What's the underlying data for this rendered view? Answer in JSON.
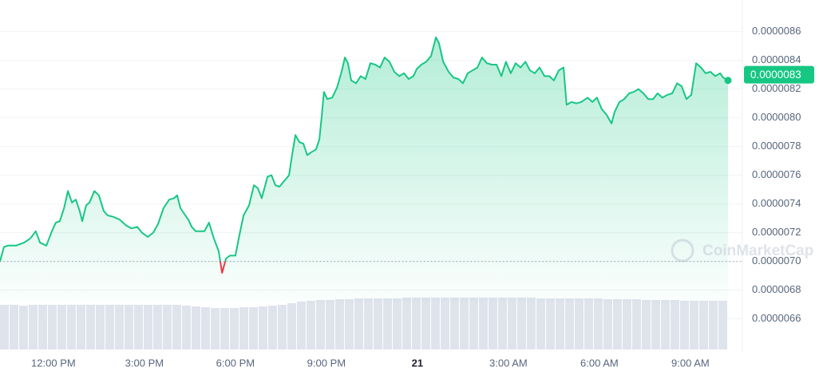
{
  "chart_data": {
    "type": "line",
    "color": "#16c784",
    "down_color": "#ea3943",
    "baseline": 7e-06,
    "watermark": "CoinMarketCap",
    "price_tag": {
      "value": 8.3e-06,
      "label": "0.0000083"
    },
    "xlim": [
      10.24,
      34.24
    ],
    "xticks": [
      {
        "value": 12,
        "label": "12:00 PM"
      },
      {
        "value": 15,
        "label": "3:00 PM"
      },
      {
        "value": 18,
        "label": "6:00 PM"
      },
      {
        "value": 21,
        "label": "9:00 PM"
      },
      {
        "value": 24,
        "label": "21"
      },
      {
        "value": 27,
        "label": "3:00 AM"
      },
      {
        "value": 30,
        "label": "6:00 AM"
      },
      {
        "value": 33,
        "label": "9:00 AM"
      }
    ],
    "ylim": [
      6.36e-06,
      8.82e-06
    ],
    "yticks": [
      {
        "value": 6.6e-06,
        "label": "0.0000066"
      },
      {
        "value": 6.8e-06,
        "label": "0.0000068"
      },
      {
        "value": 7e-06,
        "label": "0.0000070"
      },
      {
        "value": 7.2e-06,
        "label": "0.0000072"
      },
      {
        "value": 7.4e-06,
        "label": "0.0000074"
      },
      {
        "value": 7.6e-06,
        "label": "0.0000076"
      },
      {
        "value": 7.8e-06,
        "label": "0.0000078"
      },
      {
        "value": 8e-06,
        "label": "0.0000080"
      },
      {
        "value": 8.2e-06,
        "label": "0.0000082"
      },
      {
        "value": 8.4e-06,
        "label": "0.0000084"
      },
      {
        "value": 8.6e-06,
        "label": "0.0000086"
      }
    ],
    "grid": true,
    "x": [
      10.24,
      10.37,
      10.5,
      10.77,
      11.03,
      11.24,
      11.42,
      11.56,
      11.77,
      11.95,
      12.08,
      12.21,
      12.35,
      12.48,
      12.61,
      12.74,
      12.87,
      12.95,
      13.08,
      13.19,
      13.35,
      13.5,
      13.66,
      13.79,
      13.98,
      14.19,
      14.4,
      14.58,
      14.77,
      14.92,
      15.11,
      15.29,
      15.45,
      15.63,
      15.82,
      15.98,
      16.08,
      16.19,
      16.35,
      16.45,
      16.56,
      16.69,
      16.82,
      16.98,
      17.13,
      17.29,
      17.45,
      17.56,
      17.69,
      17.82,
      18.0,
      18.13,
      18.27,
      18.45,
      18.61,
      18.74,
      18.87,
      19.06,
      19.19,
      19.32,
      19.45,
      19.61,
      19.77,
      19.87,
      19.98,
      20.11,
      20.24,
      20.37,
      20.5,
      20.66,
      20.77,
      20.85,
      20.92,
      21.03,
      21.19,
      21.35,
      21.5,
      21.61,
      21.71,
      21.82,
      21.98,
      22.13,
      22.29,
      22.45,
      22.61,
      22.77,
      22.92,
      23.08,
      23.24,
      23.4,
      23.56,
      23.71,
      23.87,
      23.98,
      24.13,
      24.29,
      24.45,
      24.61,
      24.71,
      24.85,
      25.03,
      25.19,
      25.35,
      25.5,
      25.66,
      25.82,
      25.98,
      26.13,
      26.29,
      26.45,
      26.61,
      26.77,
      26.92,
      27.08,
      27.24,
      27.4,
      27.56,
      27.71,
      27.87,
      28.03,
      28.19,
      28.35,
      28.5,
      28.66,
      28.82,
      28.92,
      29.08,
      29.24,
      29.4,
      29.61,
      29.77,
      29.92,
      30.08,
      30.24,
      30.4,
      30.5,
      30.66,
      30.82,
      30.98,
      31.13,
      31.29,
      31.45,
      31.61,
      31.77,
      31.92,
      32.08,
      32.24,
      32.4,
      32.56,
      32.71,
      32.87,
      33.03,
      33.19,
      33.35,
      33.5,
      33.66,
      33.82,
      33.98,
      34.08,
      34.24
    ],
    "values": [
      7e-06,
      7.1e-06,
      7.11e-06,
      7.11e-06,
      7.13e-06,
      7.16e-06,
      7.21e-06,
      7.13e-06,
      7.11e-06,
      7.21e-06,
      7.27e-06,
      7.28e-06,
      7.37e-06,
      7.49e-06,
      7.41e-06,
      7.43e-06,
      7.35e-06,
      7.28e-06,
      7.39e-06,
      7.41e-06,
      7.49e-06,
      7.46e-06,
      7.35e-06,
      7.32e-06,
      7.31e-06,
      7.29e-06,
      7.25e-06,
      7.23e-06,
      7.24e-06,
      7.2e-06,
      7.17e-06,
      7.2e-06,
      7.26e-06,
      7.37e-06,
      7.43e-06,
      7.44e-06,
      7.46e-06,
      7.37e-06,
      7.32e-06,
      7.29e-06,
      7.24e-06,
      7.21e-06,
      7.21e-06,
      7.21e-06,
      7.27e-06,
      7.16e-06,
      7.07e-06,
      6.92e-06,
      7.02e-06,
      7.04e-06,
      7.04e-06,
      7.18e-06,
      7.32e-06,
      7.39e-06,
      7.53e-06,
      7.51e-06,
      7.44e-06,
      7.59e-06,
      7.6e-06,
      7.53e-06,
      7.52e-06,
      7.56e-06,
      7.6e-06,
      7.74e-06,
      7.88e-06,
      7.83e-06,
      7.82e-06,
      7.74e-06,
      7.76e-06,
      7.78e-06,
      7.85e-06,
      8.02e-06,
      8.18e-06,
      8.13e-06,
      8.14e-06,
      8.21e-06,
      8.32e-06,
      8.42e-06,
      8.38e-06,
      8.26e-06,
      8.24e-06,
      8.29e-06,
      8.27e-06,
      8.38e-06,
      8.37e-06,
      8.35e-06,
      8.42e-06,
      8.39e-06,
      8.32e-06,
      8.29e-06,
      8.31e-06,
      8.27e-06,
      8.29e-06,
      8.34e-06,
      8.37e-06,
      8.39e-06,
      8.43e-06,
      8.56e-06,
      8.52e-06,
      8.39e-06,
      8.32e-06,
      8.28e-06,
      8.27e-06,
      8.24e-06,
      8.31e-06,
      8.33e-06,
      8.35e-06,
      8.42e-06,
      8.38e-06,
      8.37e-06,
      8.37e-06,
      8.29e-06,
      8.39e-06,
      8.31e-06,
      8.38e-06,
      8.35e-06,
      8.39e-06,
      8.33e-06,
      8.31e-06,
      8.35e-06,
      8.29e-06,
      8.29e-06,
      8.26e-06,
      8.33e-06,
      8.35e-06,
      8.09e-06,
      8.11e-06,
      8.1e-06,
      8.11e-06,
      8.14e-06,
      8.11e-06,
      8.14e-06,
      8.06e-06,
      8.02e-06,
      7.96e-06,
      8.04e-06,
      8.11e-06,
      8.13e-06,
      8.17e-06,
      8.18e-06,
      8.2e-06,
      8.17e-06,
      8.13e-06,
      8.13e-06,
      8.17e-06,
      8.14e-06,
      8.16e-06,
      8.17e-06,
      8.24e-06,
      8.22e-06,
      8.13e-06,
      8.16e-06,
      8.38e-06,
      8.35e-06,
      8.31e-06,
      8.32e-06,
      8.29e-06,
      8.31e-06,
      8.28e-06,
      8.26e-06
    ],
    "volume": {
      "color": "#dfe3ec",
      "ylim": [
        0,
        100
      ],
      "values": [
        56,
        56,
        55,
        56,
        56,
        56,
        56,
        56,
        56,
        56,
        56,
        56,
        56,
        56,
        56,
        56,
        56,
        56,
        56,
        55,
        54,
        53,
        52,
        52,
        52,
        53,
        53,
        54,
        55,
        56,
        58,
        60,
        61,
        62,
        62,
        63,
        63,
        64,
        64,
        64,
        64,
        64,
        65,
        65,
        65,
        65,
        65,
        65,
        65,
        65,
        65,
        65,
        65,
        65,
        65,
        65,
        64,
        64,
        64,
        64,
        64,
        64,
        64,
        63,
        63,
        63,
        63,
        62,
        62,
        62,
        62,
        61,
        61,
        61,
        61,
        61
      ]
    }
  }
}
